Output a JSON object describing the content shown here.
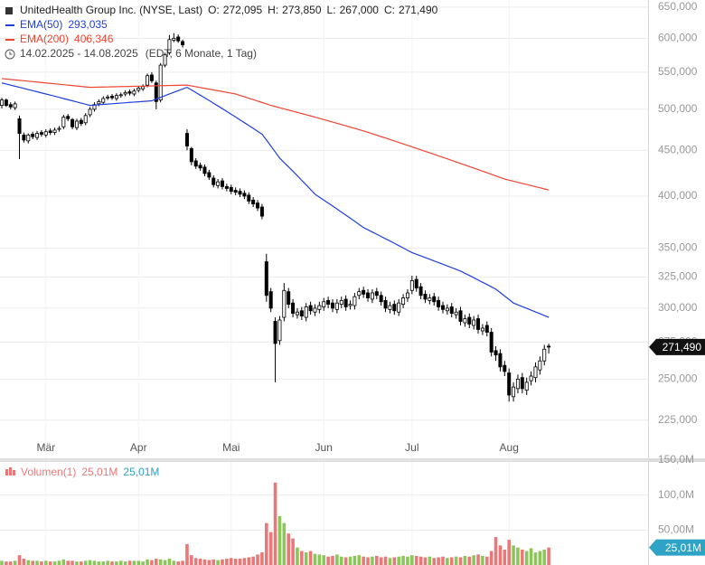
{
  "chart_data": [
    {
      "type": "candlestick",
      "title": "UnitedHealth Group Inc. (NYSE, Last)",
      "ohlc_keys": [
        "O:",
        "H:",
        "L:",
        "C:"
      ],
      "ohlc_labels": [
        "272,095",
        "273,850",
        "267,000",
        "271,490"
      ],
      "period": "14.02.2025 - 14.08.2025",
      "period_note": "(EDT, 6 Monate, 1 Tag)",
      "categories": [
        null,
        null,
        null,
        null,
        null,
        null,
        null,
        null,
        null,
        null,
        "Mär",
        null,
        null,
        null,
        null,
        null,
        null,
        null,
        null,
        null,
        null,
        null,
        null,
        null,
        null,
        null,
        null,
        null,
        null,
        null,
        null,
        "Apr",
        null,
        null,
        null,
        null,
        null,
        null,
        null,
        null,
        null,
        null,
        null,
        null,
        null,
        null,
        null,
        null,
        null,
        null,
        null,
        null,
        "Mai",
        null,
        null,
        null,
        null,
        null,
        null,
        null,
        null,
        null,
        null,
        null,
        null,
        null,
        null,
        null,
        null,
        null,
        null,
        null,
        null,
        "Jun",
        null,
        null,
        null,
        null,
        null,
        null,
        null,
        null,
        null,
        null,
        null,
        null,
        null,
        null,
        null,
        null,
        null,
        null,
        null,
        "Jul",
        null,
        null,
        null,
        null,
        null,
        null,
        null,
        null,
        null,
        null,
        null,
        null,
        null,
        null,
        null,
        null,
        null,
        null,
        null,
        null,
        null,
        "Aug",
        null,
        null,
        null,
        null,
        null,
        null,
        null,
        null,
        null
      ],
      "open": [
        505,
        512,
        506,
        502,
        488,
        468,
        461,
        469,
        465,
        471,
        468,
        473,
        471,
        475,
        478,
        491,
        487,
        477,
        486,
        483,
        493,
        500,
        507,
        509,
        515,
        517,
        514,
        518,
        520,
        523,
        520,
        525,
        527,
        532,
        546,
        535,
        512,
        560,
        578,
        597,
        602,
        595,
        470,
        452,
        438,
        433,
        431,
        425,
        419,
        411,
        416,
        410,
        409,
        406,
        405,
        403,
        401,
        396,
        393,
        389,
        338,
        313,
        290,
        276,
        293,
        313,
        304,
        295,
        298,
        293,
        302,
        297,
        299,
        301,
        306,
        304,
        299,
        303,
        307,
        302,
        302,
        310,
        314,
        312,
        307,
        313,
        310,
        306,
        299,
        303,
        297,
        303,
        308,
        314,
        323,
        317,
        311,
        306,
        309,
        306,
        302,
        298,
        301,
        295,
        298,
        289,
        293,
        287,
        292,
        283,
        287,
        282,
        269,
        267,
        259,
        254,
        239,
        244,
        251,
        243,
        249,
        251,
        256,
        262,
        272.095
      ],
      "high": [
        515,
        514,
        509,
        510,
        492,
        471,
        470,
        472,
        473,
        474,
        475,
        476,
        477,
        479,
        493,
        494,
        489,
        488,
        489,
        495,
        503,
        509,
        513,
        517,
        519,
        520,
        521,
        522,
        525,
        526,
        527,
        531,
        533,
        548,
        550,
        538,
        563,
        578,
        605,
        608,
        606,
        598,
        475,
        454,
        441,
        436,
        434,
        428,
        422,
        418,
        419,
        413,
        412,
        409,
        408,
        406,
        404,
        399,
        396,
        392,
        345,
        316,
        293,
        294,
        320,
        316,
        307,
        300,
        301,
        304,
        305,
        303,
        305,
        308,
        309,
        307,
        307,
        309,
        310,
        306,
        312,
        316,
        317,
        315,
        315,
        316,
        313,
        309,
        305,
        306,
        307,
        311,
        315,
        326,
        326,
        320,
        314,
        311,
        312,
        309,
        305,
        303,
        304,
        300,
        301,
        295,
        296,
        294,
        295,
        288,
        290,
        285,
        272,
        270,
        262,
        257,
        248,
        253,
        254,
        251,
        255,
        261,
        265,
        273,
        273.85
      ],
      "low": [
        501,
        503,
        500,
        499,
        440,
        459,
        458,
        463,
        462,
        466,
        465,
        468,
        468,
        472,
        475,
        485,
        475,
        474,
        479,
        480,
        490,
        497,
        504,
        506,
        512,
        512,
        511,
        515,
        517,
        518,
        517,
        522,
        524,
        529,
        535,
        500,
        509,
        557,
        575,
        594,
        593,
        586,
        450,
        433,
        429,
        427,
        421,
        417,
        409,
        408,
        407,
        405,
        402,
        401,
        399,
        397,
        392,
        389,
        385,
        377,
        305,
        297,
        248,
        273,
        290,
        300,
        293,
        292,
        291,
        290,
        295,
        294,
        296,
        298,
        300,
        297,
        296,
        300,
        298,
        299,
        299,
        307,
        308,
        305,
        304,
        307,
        302,
        297,
        296,
        295,
        294,
        300,
        305,
        311,
        313,
        307,
        304,
        303,
        302,
        298,
        296,
        295,
        293,
        292,
        287,
        286,
        285,
        284,
        281,
        280,
        279,
        265,
        262,
        255,
        252,
        236,
        236,
        241,
        241,
        240,
        246,
        248,
        253,
        259,
        267
      ],
      "close": [
        512,
        505,
        503,
        507,
        470,
        462,
        468,
        466,
        470,
        469,
        472,
        471,
        474,
        476,
        490,
        488,
        478,
        485,
        482,
        492,
        500,
        506,
        510,
        514,
        516,
        515,
        518,
        519,
        522,
        521,
        524,
        528,
        530,
        545,
        538,
        510,
        560,
        575,
        598,
        600,
        596,
        590,
        455,
        437,
        432,
        430,
        424,
        420,
        412,
        415,
        410,
        408,
        405,
        404,
        402,
        400,
        395,
        392,
        388,
        380,
        310,
        300,
        274,
        291,
        314,
        303,
        296,
        297,
        294,
        301,
        298,
        300,
        302,
        305,
        303,
        300,
        304,
        306,
        301,
        303,
        309,
        313,
        311,
        308,
        312,
        310,
        305,
        300,
        302,
        298,
        304,
        308,
        312,
        322,
        316,
        310,
        307,
        308,
        305,
        301,
        299,
        300,
        296,
        297,
        290,
        292,
        288,
        291,
        284,
        285,
        282,
        268,
        266,
        258,
        255,
        240,
        245,
        250,
        244,
        248,
        252,
        258,
        262,
        270,
        271.49
      ],
      "last_label": "271,490",
      "log_scale": true,
      "ylim": [
        204,
        662
      ],
      "yticks": [
        {
          "value": 225,
          "label": "225,000"
        },
        {
          "value": 250,
          "label": "250,000"
        },
        {
          "value": 275,
          "label": "275,000"
        },
        {
          "value": 300,
          "label": "300,000"
        },
        {
          "value": 325,
          "label": "325,000"
        },
        {
          "value": 350,
          "label": "350,000"
        },
        {
          "value": 400,
          "label": "400,000"
        },
        {
          "value": 450,
          "label": "450,000"
        },
        {
          "value": 500,
          "label": "500,000"
        },
        {
          "value": 550,
          "label": "550,000"
        },
        {
          "value": 600,
          "label": "600,000"
        },
        {
          "value": 650,
          "label": "650,000"
        }
      ],
      "grid": true,
      "up_color": "#ffffff",
      "down_color": "#000000",
      "series": [
        {
          "name": "EMA(50)",
          "color": "#1f3fe0",
          "last_label": "293,035",
          "values": [
            535,
            533.5,
            532,
            530.5,
            529,
            527.5,
            526,
            524.5,
            523,
            521.5,
            520,
            518.5,
            517,
            515.5,
            514,
            512.5,
            511,
            509.5,
            508,
            506.5,
            505,
            505.4,
            505.9,
            506.3,
            506.7,
            507.1,
            507.6,
            508,
            508.4,
            508.9,
            509.3,
            509.7,
            510.1,
            510.6,
            511,
            513.3,
            515.5,
            517.8,
            520,
            522.3,
            524.5,
            526.8,
            529,
            525.5,
            521.9,
            518.4,
            514.9,
            511.4,
            507.8,
            504.3,
            500.8,
            497.2,
            493.7,
            490.2,
            486.6,
            483.1,
            479.6,
            476.1,
            472.5,
            469,
            462,
            455,
            448,
            441,
            436.1,
            431.3,
            426.4,
            421.5,
            416.6,
            411.8,
            406.9,
            402,
            399,
            396,
            393,
            390,
            387,
            384,
            381,
            378,
            375,
            372,
            369,
            366.9,
            364.8,
            362.7,
            360.6,
            358.5,
            356.5,
            354.4,
            352.3,
            350.2,
            348.1,
            346,
            344.5,
            343.1,
            341.6,
            340.2,
            338.7,
            337.3,
            335.8,
            334.4,
            332.9,
            331.5,
            330,
            328.1,
            326.3,
            324.4,
            322.5,
            320.6,
            318.8,
            316.9,
            315,
            312.3,
            309.5,
            306.8,
            304,
            302.6,
            301.2,
            299.9,
            298.5,
            297.1,
            295.8,
            294.4,
            293.035
          ]
        },
        {
          "name": "EMA(200)",
          "color": "#ee4432",
          "last_label": "406,346",
          "values": [
            541,
            540.4,
            539.8,
            539.2,
            538.6,
            538,
            537.4,
            536.8,
            536.2,
            535.6,
            535,
            534.4,
            533.8,
            533.2,
            532.6,
            532,
            531.4,
            530.8,
            530.2,
            529.6,
            529,
            529.1,
            529.3,
            529.4,
            529.5,
            529.7,
            529.8,
            530,
            530.1,
            530.2,
            530.4,
            530.5,
            530.6,
            530.8,
            530.9,
            531.1,
            531.2,
            531.3,
            531.5,
            531.6,
            531.7,
            531.9,
            532,
            530.9,
            529.8,
            528.7,
            527.6,
            526.5,
            525.5,
            524.4,
            523.3,
            522.2,
            521.1,
            520,
            518.1,
            516.3,
            514.4,
            512.5,
            510.6,
            508.8,
            506.9,
            505,
            503.5,
            502,
            500.5,
            499,
            497.5,
            496,
            494.5,
            493,
            491.5,
            490,
            488.5,
            486.9,
            485.4,
            483.8,
            482.3,
            480.7,
            479.2,
            477.6,
            476.1,
            474.5,
            473,
            471.3,
            469.5,
            467.8,
            466.1,
            464.4,
            462.6,
            460.9,
            459.2,
            457.5,
            455.7,
            454,
            452.3,
            450.5,
            448.8,
            447.1,
            445.4,
            443.6,
            441.9,
            440.2,
            438.5,
            436.7,
            435,
            433.3,
            431.6,
            429.9,
            428.2,
            426.5,
            424.8,
            423.1,
            421.4,
            419.7,
            418,
            416.8,
            415.7,
            414.5,
            413.3,
            412.2,
            411,
            409.8,
            408.7,
            407.5,
            406.346
          ]
        }
      ]
    },
    {
      "type": "bar",
      "series": [
        {
          "name": "Volumen(1)",
          "up_color": "#8cc65a",
          "down_color": "#ea7878",
          "last_label": "25,01M",
          "ma_label": "25,01M",
          "ma_color": "#2ea3c6",
          "values": [
            6,
            5,
            5,
            6,
            14,
            9,
            7,
            6,
            6,
            5,
            6,
            5,
            5,
            6,
            8,
            6,
            6,
            5,
            5,
            6,
            7,
            6,
            5,
            5,
            6,
            5,
            5,
            6,
            5,
            6,
            6,
            6,
            5,
            8,
            7,
            9,
            8,
            7,
            9,
            6,
            5,
            6,
            30,
            14,
            10,
            9,
            8,
            7,
            8,
            7,
            8,
            9,
            10,
            9,
            9,
            10,
            11,
            12,
            15,
            18,
            60,
            47,
            118,
            70,
            60,
            45,
            38,
            25,
            20,
            18,
            20,
            16,
            15,
            14,
            12,
            13,
            15,
            12,
            11,
            12,
            13,
            14,
            12,
            11,
            12,
            13,
            11,
            12,
            10,
            11,
            12,
            13,
            12,
            14,
            13,
            12,
            11,
            12,
            10,
            11,
            12,
            10,
            11,
            12,
            11,
            13,
            12,
            14,
            15,
            13,
            12,
            20,
            40,
            28,
            22,
            36,
            28,
            25,
            22,
            20,
            24,
            18,
            20,
            22,
            25.01
          ]
        }
      ],
      "ylim": [
        0,
        150
      ],
      "yticks": [
        {
          "value": 50,
          "label": "50,00M"
        },
        {
          "value": 100,
          "label": "100,0M"
        },
        {
          "value": 150,
          "label": "150,0M"
        }
      ],
      "grid": true
    }
  ]
}
